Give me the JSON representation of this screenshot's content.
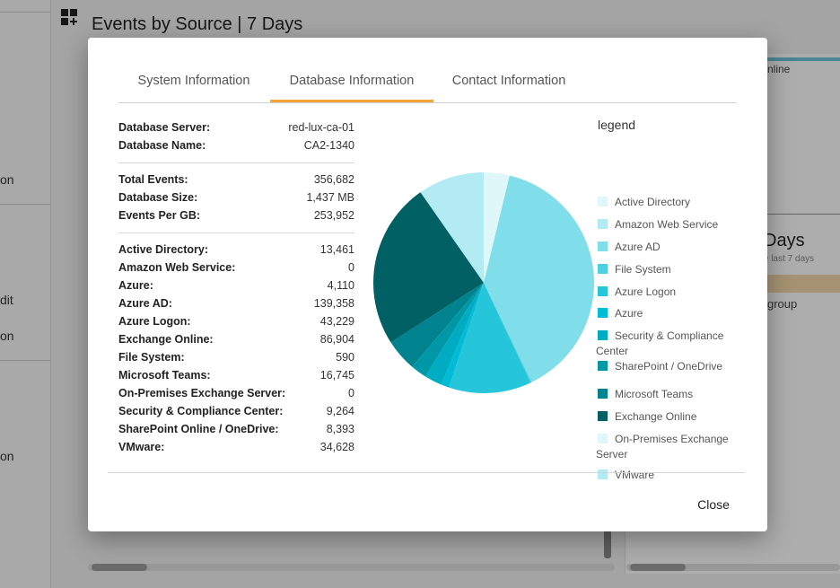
{
  "background": {
    "title": "Events by Source | 7 Days",
    "sidebar_fragments": [
      "on",
      "dit",
      "on",
      "on"
    ],
    "right_card": {
      "status_text": "nline",
      "heading": "Days",
      "subtext": "e last 7 days",
      "group_text": "group"
    }
  },
  "dialog": {
    "tabs": [
      {
        "label": "System Information",
        "active": false
      },
      {
        "label": "Database Information",
        "active": true
      },
      {
        "label": "Contact Information",
        "active": false
      }
    ],
    "database": [
      {
        "label": "Database Server:",
        "value": "red-lux-ca-01"
      },
      {
        "label": "Database Name:",
        "value": "CA2-1340"
      }
    ],
    "totals": [
      {
        "label": "Total Events:",
        "value": "356,682"
      },
      {
        "label": "Database Size:",
        "value": "1,437 MB"
      },
      {
        "label": "Events Per GB:",
        "value": "253,952"
      }
    ],
    "sources": [
      {
        "label": "Active Directory:",
        "value": "13,461"
      },
      {
        "label": "Amazon Web Service:",
        "value": "0"
      },
      {
        "label": "Azure:",
        "value": "4,110"
      },
      {
        "label": "Azure AD:",
        "value": "139,358"
      },
      {
        "label": "Azure Logon:",
        "value": "43,229"
      },
      {
        "label": "Exchange Online:",
        "value": "86,904"
      },
      {
        "label": "File System:",
        "value": "590"
      },
      {
        "label": "Microsoft Teams:",
        "value": "16,745"
      },
      {
        "label": "On-Premises Exchange Server:",
        "value": "0"
      },
      {
        "label": "Security & Compliance Center:",
        "value": "9,264"
      },
      {
        "label": "SharePoint Online / OneDrive:",
        "value": "8,393"
      },
      {
        "label": "VMware:",
        "value": "34,628"
      }
    ],
    "close_label": "Close"
  },
  "chart_data": {
    "type": "pie",
    "title": "",
    "legend_title": "legend",
    "slices": [
      {
        "name": "Active Directory",
        "value": 13461,
        "color": "#e0f7fa"
      },
      {
        "name": "Amazon Web Service",
        "value": 0,
        "color": "#b2ebf2"
      },
      {
        "name": "Azure AD",
        "value": 139358,
        "color": "#80deea"
      },
      {
        "name": "File System",
        "value": 590,
        "color": "#4dd0e1"
      },
      {
        "name": "Azure Logon",
        "value": 43229,
        "color": "#26c6da"
      },
      {
        "name": "Azure",
        "value": 4110,
        "color": "#00bcd4"
      },
      {
        "name": "Security & Compliance Center",
        "value": 9264,
        "color": "#00acc1"
      },
      {
        "name": "SharePoint / OneDrive",
        "value": 8393,
        "color": "#0097a7"
      },
      {
        "name": "Microsoft Teams",
        "value": 16745,
        "color": "#00838f"
      },
      {
        "name": "Exchange Online",
        "value": 86904,
        "color": "#006064"
      },
      {
        "name": "On-Premises Exchange Server",
        "value": 0,
        "color": "#e0f7fa"
      },
      {
        "name": "VMware",
        "value": 34628,
        "color": "#b2ebf2"
      }
    ]
  }
}
